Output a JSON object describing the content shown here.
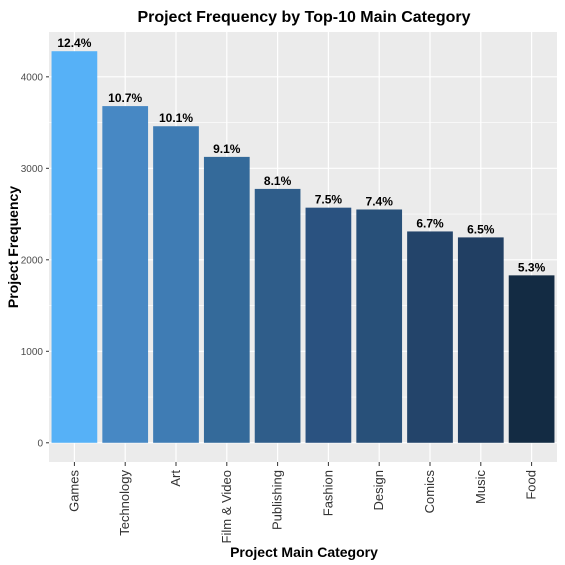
{
  "chart_data": {
    "type": "bar",
    "title": "Project Frequency by Top-10 Main Category",
    "xlabel": "Project Main Category",
    "ylabel": "Project Frequency",
    "categories": [
      "Games",
      "Technology",
      "Art",
      "Film & Video",
      "Publishing",
      "Fashion",
      "Design",
      "Comics",
      "Music",
      "Food"
    ],
    "values": [
      4280,
      3680,
      3460,
      3125,
      2775,
      2570,
      2550,
      2310,
      2245,
      1830
    ],
    "data_labels": [
      "12.4%",
      "10.7%",
      "10.1%",
      "9.1%",
      "8.1%",
      "7.5%",
      "7.4%",
      "6.7%",
      "6.5%",
      "5.3%"
    ],
    "colors": [
      "#56B1F7",
      "#4788C4",
      "#3F7CB4",
      "#346A9A",
      "#2F5D8A",
      "#2A5280",
      "#285079",
      "#23446A",
      "#213F63",
      "#132B43"
    ],
    "yticks": [
      0,
      1000,
      2000,
      3000,
      4000
    ],
    "ylim": [
      -210,
      4490
    ],
    "grid": true,
    "legend": "none"
  }
}
